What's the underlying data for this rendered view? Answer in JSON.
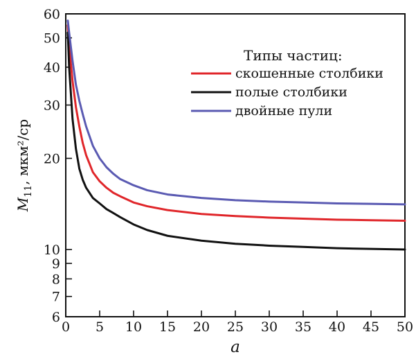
{
  "chart_data": {
    "type": "line",
    "xlabel": "a",
    "ylabel_main": "M",
    "ylabel_sub": "11",
    "ylabel_rest": ", мкм²/ср",
    "xlim": [
      0,
      50
    ],
    "ylim": [
      6,
      60
    ],
    "yscale": "log",
    "grid": false,
    "xticks": [
      0,
      5,
      10,
      15,
      20,
      25,
      30,
      35,
      40,
      45,
      50
    ],
    "yticks": [
      6,
      7,
      8,
      9,
      10,
      20,
      30,
      40,
      50,
      60
    ],
    "legend": {
      "title": "Типы частиц:",
      "position": "top-right"
    },
    "series": [
      {
        "name": "скошенные столбики",
        "color": "#e0262a",
        "x": [
          0.3,
          0.5,
          1,
          1.5,
          2,
          2.5,
          3,
          4,
          5,
          6,
          7,
          8,
          10,
          12,
          15,
          20,
          25,
          30,
          35,
          40,
          45,
          50
        ],
        "y": [
          55,
          47,
          36,
          29.5,
          25.5,
          22.5,
          20.5,
          18,
          16.8,
          16,
          15.4,
          15,
          14.3,
          13.9,
          13.5,
          13.1,
          12.9,
          12.75,
          12.65,
          12.55,
          12.5,
          12.45
        ]
      },
      {
        "name": "полые столбики",
        "color": "#111111",
        "x": [
          0.3,
          0.5,
          1,
          1.5,
          2,
          2.5,
          3,
          4,
          5,
          6,
          7,
          8,
          10,
          12,
          15,
          20,
          25,
          30,
          35,
          40,
          45,
          50
        ],
        "y": [
          52,
          40,
          27,
          21.5,
          18.5,
          17,
          16,
          14.8,
          14.2,
          13.6,
          13.2,
          12.8,
          12.1,
          11.6,
          11.1,
          10.7,
          10.45,
          10.3,
          10.2,
          10.1,
          10.05,
          10.0
        ]
      },
      {
        "name": "двойные пули",
        "color": "#5a5ab2",
        "x": [
          0.3,
          0.5,
          1,
          1.5,
          2,
          2.5,
          3,
          4,
          5,
          6,
          7,
          8,
          10,
          12,
          15,
          20,
          25,
          30,
          35,
          40,
          45,
          50
        ],
        "y": [
          57,
          52,
          42,
          35,
          31,
          28,
          25.5,
          22,
          20,
          18.7,
          17.8,
          17.1,
          16.3,
          15.7,
          15.2,
          14.8,
          14.55,
          14.4,
          14.3,
          14.2,
          14.15,
          14.1
        ]
      }
    ]
  }
}
